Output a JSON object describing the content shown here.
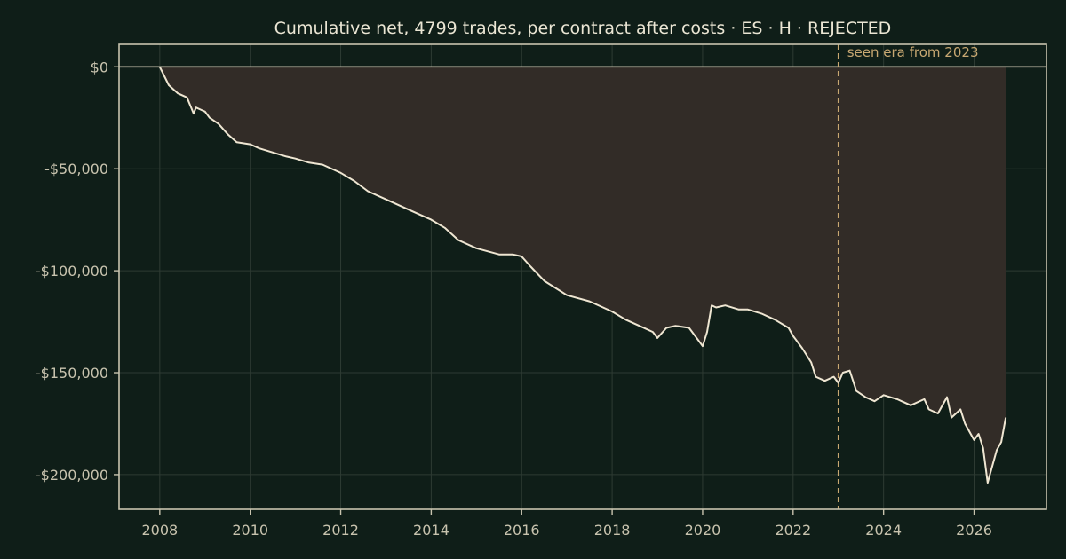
{
  "colors": {
    "background": "#0f1e18",
    "axis": "#c8c3ae",
    "text": "#ebe6d4",
    "tick_text": "#c8c3ae",
    "grid": "#2e3b33",
    "line": "#efe6d2",
    "fill": "#322c27",
    "seen_marker": "#c8a872"
  },
  "chart_data": {
    "type": "line",
    "title": "Cumulative net, 4799 trades, per contract after costs  ·  ES · H · REJECTED",
    "xlabel": "",
    "ylabel": "",
    "xlim": [
      2007.1,
      2027.6
    ],
    "ylim": [
      -217000,
      11000
    ],
    "xticks": [
      2008,
      2010,
      2012,
      2014,
      2016,
      2018,
      2020,
      2022,
      2024,
      2026
    ],
    "xtick_labels": [
      "2008",
      "2010",
      "2012",
      "2014",
      "2016",
      "2018",
      "2020",
      "2022",
      "2024",
      "2026"
    ],
    "yticks": [
      0,
      -50000,
      -100000,
      -150000,
      -200000
    ],
    "ytick_labels": [
      "$0",
      "-$50,000",
      "-$100,000",
      "-$150,000",
      "-$200,000"
    ],
    "grid": true,
    "fill_to_zero": true,
    "vline": {
      "x": 2023.0,
      "label": "seen era from 2023"
    },
    "series": [
      {
        "x": [
          2008.0,
          2008.2,
          2008.4,
          2008.6,
          2008.75,
          2008.8,
          2008.9,
          2009.0,
          2009.1,
          2009.3,
          2009.5,
          2009.7,
          2010.0,
          2010.2,
          2010.5,
          2010.8,
          2011.0,
          2011.3,
          2011.6,
          2011.9,
          2012.0,
          2012.3,
          2012.6,
          2013.0,
          2013.5,
          2014.0,
          2014.3,
          2014.6,
          2015.0,
          2015.5,
          2015.8,
          2016.0,
          2016.2,
          2016.5,
          2017.0,
          2017.5,
          2018.0,
          2018.3,
          2018.6,
          2018.9,
          2019.0,
          2019.2,
          2019.4,
          2019.7,
          2019.9,
          2020.0,
          2020.1,
          2020.2,
          2020.3,
          2020.5,
          2020.8,
          2021.0,
          2021.3,
          2021.6,
          2021.9,
          2022.0,
          2022.2,
          2022.4,
          2022.5,
          2022.7,
          2022.9,
          2023.0,
          2023.1,
          2023.25,
          2023.4,
          2023.6,
          2023.8,
          2024.0,
          2024.3,
          2024.6,
          2024.9,
          2025.0,
          2025.2,
          2025.4,
          2025.5,
          2025.7,
          2025.8,
          2026.0,
          2026.1,
          2026.2,
          2026.3,
          2026.5,
          2026.6,
          2026.7
        ],
        "values": [
          0,
          -9000,
          -13000,
          -15000,
          -23000,
          -20000,
          -21000,
          -22000,
          -25000,
          -28000,
          -33000,
          -37000,
          -38000,
          -40000,
          -42000,
          -44000,
          -45000,
          -47000,
          -48000,
          -51000,
          -52000,
          -56000,
          -61000,
          -65000,
          -70000,
          -75000,
          -79000,
          -85000,
          -89000,
          -92000,
          -92000,
          -93000,
          -98000,
          -105000,
          -112000,
          -115000,
          -120000,
          -124000,
          -127000,
          -130000,
          -133000,
          -128000,
          -127000,
          -128000,
          -134000,
          -137000,
          -130000,
          -117000,
          -118000,
          -117000,
          -119000,
          -119000,
          -121000,
          -124000,
          -128000,
          -132000,
          -138000,
          -145000,
          -152000,
          -154000,
          -152000,
          -155000,
          -150000,
          -149000,
          -159000,
          -162000,
          -164000,
          -161000,
          -163000,
          -166000,
          -163000,
          -168000,
          -170000,
          -162000,
          -172000,
          -168000,
          -175000,
          -183000,
          -180000,
          -187000,
          -204000,
          -188000,
          -184000,
          -172000
        ]
      }
    ]
  }
}
